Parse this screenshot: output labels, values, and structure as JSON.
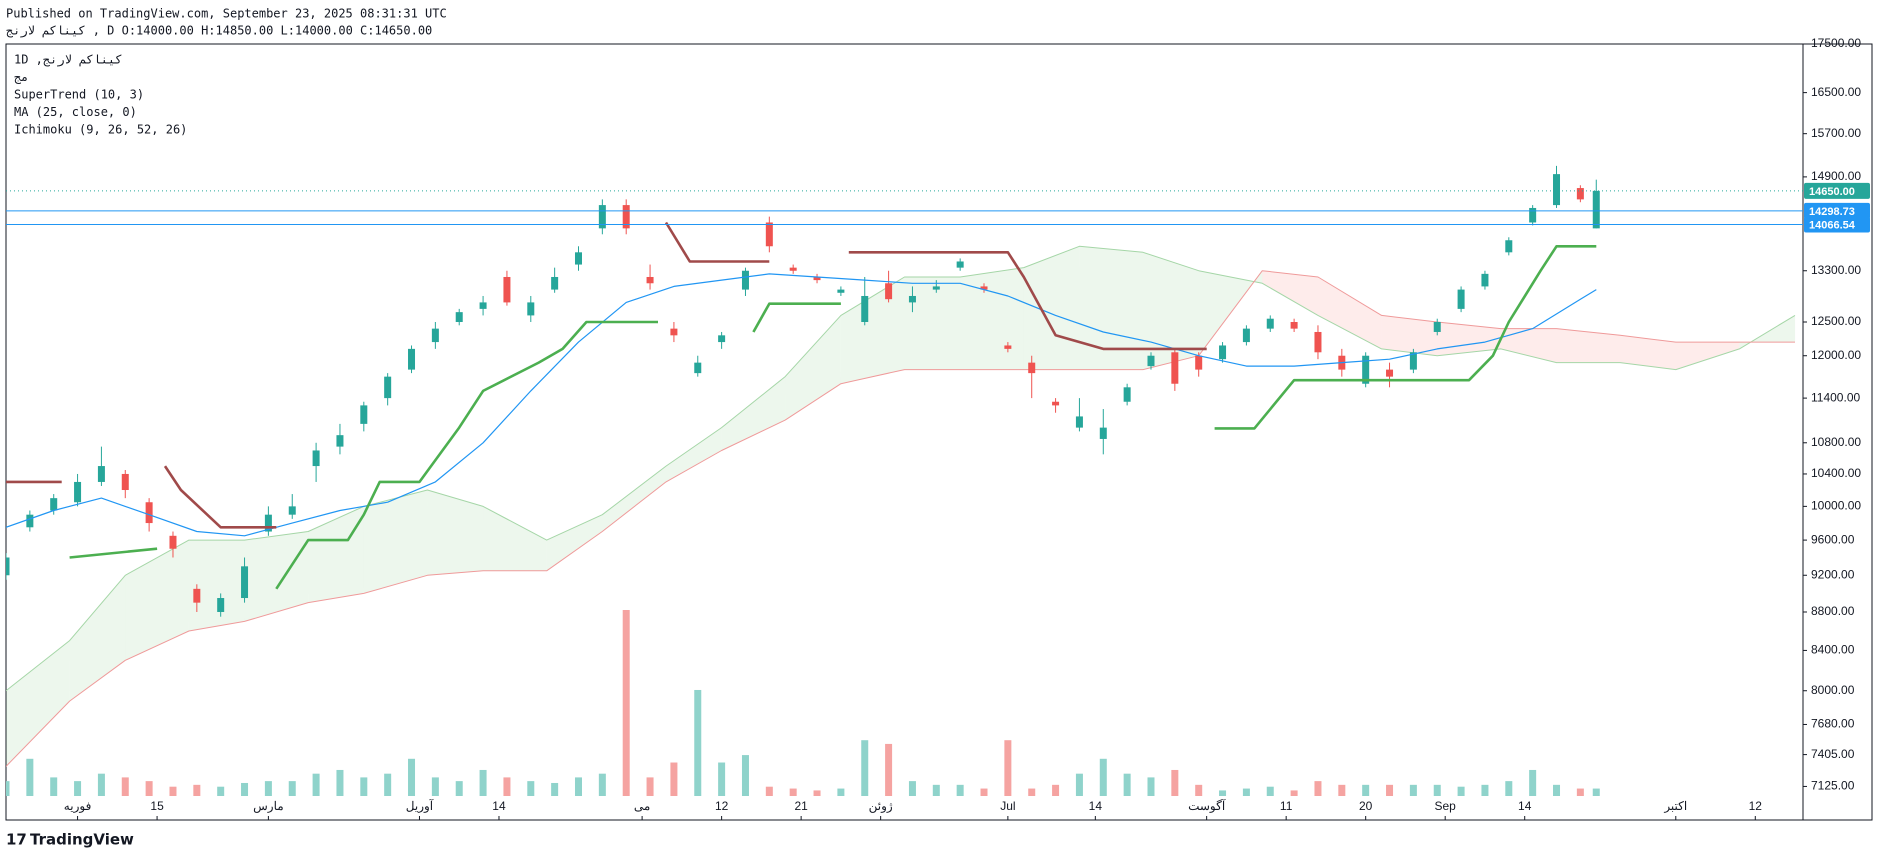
{
  "header": {
    "published": "Published on TradingView.com, September 23, 2025 08:31:31 UTC",
    "symbol_line": "کیناکم لارنج , D O:14000.00 H:14850.00 L:14000.00 C:14650.00"
  },
  "footer": {
    "brand": "TradingView"
  },
  "chart_data": {
    "type": "candlestick",
    "legend": [
      "1D ,کیناکم لارنج",
      "مج",
      "SuperTrend (10, 3)",
      "MA (25, close, 0)",
      "Ichimoku (9, 26, 52, 26)"
    ],
    "log_scale": true,
    "grid": false,
    "up_color": "#26a69a",
    "down_color": "#ef5350",
    "volume_up_color": "#8fd3cb",
    "volume_down_color": "#f5a3a1",
    "ylim": [
      7043,
      17500
    ],
    "yticks": [
      {
        "value": 17500,
        "label": "17500.00"
      },
      {
        "value": 16500,
        "label": "16500.00"
      },
      {
        "value": 15700,
        "label": "15700.00"
      },
      {
        "value": 14900,
        "label": "14900.00"
      },
      {
        "value": 13300,
        "label": "13300.00"
      },
      {
        "value": 12500,
        "label": "12500.00"
      },
      {
        "value": 12000,
        "label": "12000.00"
      },
      {
        "value": 11400,
        "label": "11400.00"
      },
      {
        "value": 10800,
        "label": "10800.00"
      },
      {
        "value": 10400,
        "label": "10400.00"
      },
      {
        "value": 10000,
        "label": "10000.00"
      },
      {
        "value": 9600,
        "label": "9600.00"
      },
      {
        "value": 9200,
        "label": "9200.00"
      },
      {
        "value": 8800,
        "label": "8800.00"
      },
      {
        "value": 8400,
        "label": "8400.00"
      },
      {
        "value": 8000,
        "label": "8000.00"
      },
      {
        "value": 7680,
        "label": "7680.00"
      },
      {
        "value": 7405,
        "label": "7405.00"
      },
      {
        "value": 7125,
        "label": "7125.00"
      }
    ],
    "xlim": [
      0,
      226
    ],
    "xticks": [
      {
        "value": 9,
        "label": "فوریه"
      },
      {
        "value": 19,
        "label": "15"
      },
      {
        "value": 33,
        "label": "مارس"
      },
      {
        "value": 52,
        "label": "آوریل"
      },
      {
        "value": 62,
        "label": "14"
      },
      {
        "value": 80,
        "label": "می"
      },
      {
        "value": 90,
        "label": "12"
      },
      {
        "value": 100,
        "label": "21"
      },
      {
        "value": 110,
        "label": "ژوئن"
      },
      {
        "value": 126,
        "label": "Jul"
      },
      {
        "value": 137,
        "label": "14"
      },
      {
        "value": 151,
        "label": "آگوست"
      },
      {
        "value": 161,
        "label": "11"
      },
      {
        "value": 171,
        "label": "20"
      },
      {
        "value": 181,
        "label": "Sep"
      },
      {
        "value": 191,
        "label": "14"
      },
      {
        "value": 210,
        "label": "اکتبر"
      },
      {
        "value": 220,
        "label": "12"
      }
    ],
    "candles": {
      "x": [
        0,
        3,
        6,
        9,
        12,
        15,
        18,
        21,
        24,
        27,
        30,
        33,
        36,
        39,
        42,
        45,
        48,
        51,
        54,
        57,
        60,
        63,
        66,
        69,
        72,
        75,
        78,
        81,
        84,
        87,
        90,
        93,
        96,
        99,
        102,
        105,
        108,
        111,
        114,
        117,
        120,
        123,
        126,
        129,
        132,
        135,
        138,
        141,
        144,
        147,
        150,
        153,
        156,
        159,
        162,
        165,
        168,
        171,
        174,
        177,
        180,
        183,
        186,
        189,
        192,
        195,
        198,
        200
      ],
      "open": [
        9200,
        9750,
        9950,
        10050,
        10300,
        10400,
        10050,
        9650,
        9050,
        8800,
        8950,
        9700,
        9900,
        10500,
        10750,
        11050,
        11400,
        11800,
        12200,
        12500,
        12700,
        13200,
        12600,
        13000,
        13400,
        14000,
        14400,
        13200,
        12400,
        11750,
        12200,
        13000,
        14100,
        13350,
        13200,
        12950,
        12500,
        13100,
        12800,
        13000,
        13350,
        13050,
        12150,
        11900,
        11350,
        11000,
        10850,
        11350,
        11850,
        12050,
        12000,
        11950,
        12200,
        12400,
        12500,
        12350,
        12000,
        11600,
        11800,
        11800,
        12350,
        12700,
        13050,
        13600,
        14100,
        14400,
        14700,
        14000
      ],
      "high": [
        9450,
        9950,
        10150,
        10400,
        10750,
        10450,
        10100,
        9700,
        9100,
        9000,
        9400,
        10000,
        10150,
        10800,
        11050,
        11350,
        11750,
        12150,
        12500,
        12700,
        12900,
        13300,
        12900,
        13350,
        13700,
        14500,
        14500,
        13400,
        12500,
        12000,
        12350,
        13350,
        14200,
        13400,
        13250,
        13050,
        13200,
        13300,
        13050,
        13150,
        13500,
        13100,
        12200,
        12000,
        11400,
        11400,
        11250,
        11600,
        12050,
        12100,
        12050,
        12200,
        12450,
        12600,
        12550,
        12450,
        12100,
        12050,
        11900,
        12100,
        12550,
        13050,
        13300,
        13850,
        14400,
        15100,
        14750,
        14850
      ],
      "low": [
        9150,
        9700,
        9900,
        10000,
        10250,
        10100,
        9700,
        9400,
        8800,
        8750,
        8900,
        9650,
        9850,
        10300,
        10650,
        10950,
        11300,
        11750,
        12100,
        12450,
        12600,
        12750,
        12500,
        12950,
        13300,
        13900,
        13900,
        13000,
        12200,
        11700,
        12100,
        12900,
        13600,
        13250,
        13100,
        12900,
        12450,
        12800,
        12650,
        12950,
        13300,
        12950,
        12050,
        11400,
        11200,
        10950,
        10650,
        11300,
        11800,
        11500,
        11700,
        11900,
        12150,
        12350,
        12350,
        11950,
        11700,
        11550,
        11550,
        11750,
        12300,
        12650,
        13000,
        13550,
        14050,
        14350,
        14450,
        14000
      ],
      "close": [
        9400,
        9900,
        10100,
        10300,
        10500,
        10200,
        9800,
        9500,
        8900,
        8950,
        9300,
        9900,
        10000,
        10700,
        10900,
        11300,
        11700,
        12100,
        12400,
        12650,
        12800,
        12800,
        12800,
        13200,
        13600,
        14400,
        14000,
        13100,
        12300,
        11900,
        12300,
        13300,
        13700,
        13300,
        13150,
        13000,
        12900,
        12850,
        12900,
        13050,
        13450,
        13000,
        12100,
        11750,
        11300,
        11150,
        11000,
        11550,
        12000,
        11600,
        11800,
        12150,
        12400,
        12550,
        12400,
        12050,
        11800,
        12000,
        11700,
        12050,
        12500,
        13000,
        13250,
        13800,
        14350,
        14950,
        14500,
        14650
      ],
      "volume": [
        8,
        20,
        10,
        8,
        12,
        10,
        8,
        5,
        6,
        5,
        7,
        8,
        8,
        12,
        14,
        10,
        12,
        20,
        10,
        8,
        14,
        10,
        8,
        7,
        10,
        12,
        100,
        10,
        18,
        57,
        18,
        22,
        5,
        4,
        3,
        4,
        30,
        28,
        8,
        6,
        6,
        4,
        30,
        4,
        6,
        12,
        20,
        12,
        10,
        14,
        6,
        3,
        4,
        5,
        3,
        8,
        6,
        6,
        6,
        6,
        6,
        5,
        6,
        8,
        14,
        6,
        4,
        4
      ]
    },
    "lines": [
      {
        "name": "MA (25, close, 0)",
        "color": "#2196f3",
        "width": 1.2,
        "x": [
          0,
          6,
          12,
          18,
          24,
          30,
          36,
          42,
          48,
          54,
          60,
          66,
          72,
          78,
          84,
          90,
          96,
          102,
          108,
          114,
          120,
          126,
          132,
          138,
          144,
          150,
          156,
          162,
          168,
          174,
          180,
          186,
          192,
          198,
          200
        ],
        "values": [
          9750,
          9950,
          10100,
          9900,
          9700,
          9650,
          9800,
          9950,
          10050,
          10300,
          10800,
          11500,
          12200,
          12800,
          13050,
          13150,
          13250,
          13200,
          13150,
          13100,
          13100,
          12900,
          12600,
          12350,
          12200,
          12000,
          11850,
          11850,
          11900,
          11950,
          12100,
          12200,
          12400,
          12850,
          13000
        ]
      },
      {
        "name": "SuperTrend (10, 3)",
        "color": "#4caf50",
        "width": 2.6,
        "x": [
          8,
          19,
          20,
          34,
          38,
          43,
          45,
          47,
          52,
          57,
          60,
          67,
          70,
          73,
          82,
          83,
          94,
          96,
          105,
          106,
          152,
          157,
          162,
          184,
          187,
          189,
          193,
          195,
          200
        ],
        "values": [
          9400,
          9500,
          null,
          9050,
          9600,
          9600,
          9900,
          10300,
          10300,
          11000,
          11500,
          11900,
          12100,
          12500,
          12500,
          null,
          12350,
          12780,
          12780,
          null,
          10990,
          10990,
          11650,
          11650,
          12000,
          12500,
          13300,
          13700,
          13700
        ]
      },
      {
        "name": "SuperTrend (10, 3)",
        "color": "#a04a4a",
        "width": 2.6,
        "x": [
          0,
          7,
          8,
          20,
          22,
          27,
          34,
          35,
          83,
          86,
          96,
          97,
          106,
          126,
          128,
          132,
          138,
          151
        ],
        "values": [
          10300,
          10300,
          null,
          10500,
          10200,
          9750,
          9750,
          null,
          14100,
          13450,
          13450,
          null,
          13600,
          13600,
          13200,
          12300,
          12100,
          12100
        ]
      }
    ],
    "cloud": {
      "x": [
        0,
        8,
        15,
        23,
        30,
        38,
        45,
        53,
        60,
        68,
        75,
        83,
        90,
        98,
        105,
        113,
        120,
        128,
        135,
        143,
        150,
        158,
        165,
        173,
        180,
        188,
        195,
        203,
        210,
        218,
        225
      ],
      "span_a": [
        8000,
        8500,
        9200,
        9600,
        9600,
        9700,
        10000,
        10200,
        10000,
        9600,
        9900,
        10500,
        11000,
        11700,
        12600,
        13200,
        13200,
        13350,
        13700,
        13600,
        13300,
        13100,
        12600,
        12100,
        12000,
        12100,
        11900,
        11900,
        11800,
        12100,
        12600
      ],
      "span_b": [
        7300,
        7900,
        8300,
        8600,
        8700,
        8900,
        9000,
        9200,
        9250,
        9250,
        9700,
        10300,
        10700,
        11100,
        11600,
        11800,
        11800,
        11800,
        11800,
        11800,
        12000,
        13300,
        13200,
        12600,
        12500,
        12400,
        12400,
        12300,
        12200,
        12200,
        12200
      ],
      "color_a": "#a5d6a7",
      "color_b": "#ef9a9a",
      "fill_up": "rgba(76,175,80,0.10)",
      "fill_down": "rgba(244,67,54,0.10)"
    },
    "price_lines": [
      {
        "value": 14650,
        "label": "14650.00",
        "color": "#26a69a",
        "dash": true
      },
      {
        "value": 14298.73,
        "label": "14298.73",
        "color": "#2196f3",
        "dash": false
      },
      {
        "value": 14066.54,
        "label": "14066.54",
        "color": "#2196f3",
        "dash": false
      }
    ]
  }
}
